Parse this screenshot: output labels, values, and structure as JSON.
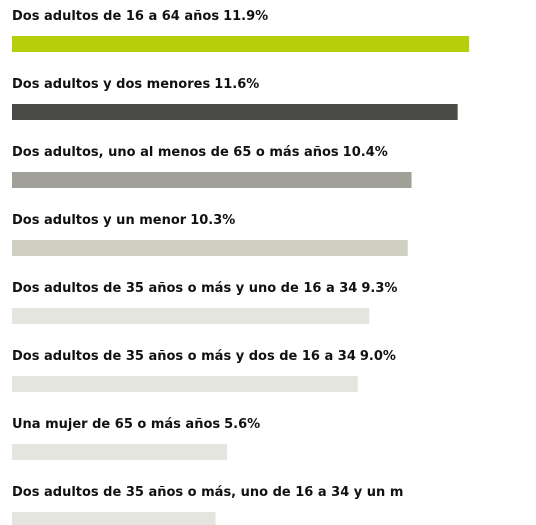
{
  "chart_data": {
    "type": "bar",
    "orientation": "horizontal",
    "categories": [
      "Dos adultos de 16 a 64 años",
      "Dos adultos y dos menores",
      "Dos adultos, uno al menos de 65 o más años",
      "Dos adultos y un menor",
      "Dos adultos de 35 años o más y uno de 16 a 34",
      "Dos adultos de 35 años o más y dos de 16 a 34",
      "Una mujer de 65 o más años",
      "Dos adultos de 35 años o más, uno de 16 a 34 y un m"
    ],
    "values": [
      11.9,
      11.6,
      10.4,
      10.3,
      9.3,
      9.0,
      5.6,
      5.3
    ],
    "value_labels": [
      "11.9%",
      "11.6%",
      "10.4%",
      "10.3%",
      "9.3%",
      "9.0%",
      "5.6%",
      null
    ],
    "colors": [
      "#b7cf0b",
      "#4a4a46",
      "#a09f98",
      "#cfcfc2",
      "#e5e5e0",
      "#e5e5e0",
      "#e5e5e0",
      "#e5e5e0"
    ],
    "xlim": [
      0,
      12
    ]
  }
}
